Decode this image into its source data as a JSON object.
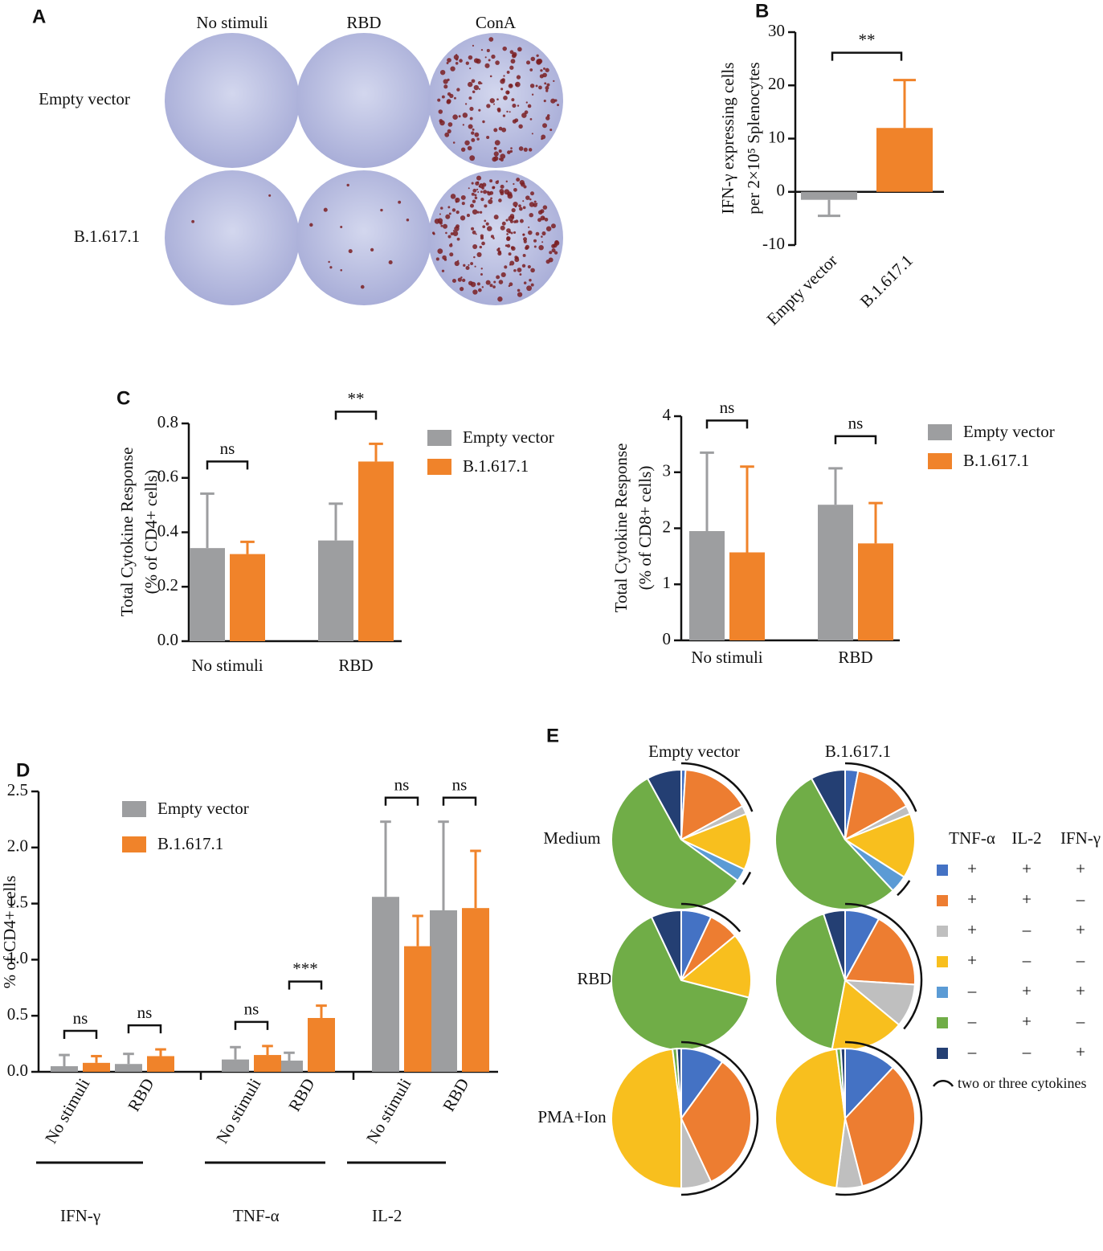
{
  "panel_a": {
    "panel": "A",
    "columns": [
      "No stimuli",
      "RBD",
      "ConA"
    ],
    "rows": [
      "Empty vector",
      "B.1.617.1"
    ]
  },
  "chart_data": [
    {
      "type": "bar",
      "panel": "B",
      "ylabel": [
        "IFN-γ expressing cells",
        "per 2×10⁵ Splenocytes"
      ],
      "categories": [
        "Empty vector",
        "B.1.617.1"
      ],
      "values": [
        -1.5,
        12
      ],
      "errors": [
        3,
        9
      ],
      "colors": [
        "#9d9ea0",
        "#f0832a"
      ],
      "ylim": [
        -10,
        30
      ],
      "yticks": [
        -10,
        0,
        10,
        20,
        30
      ],
      "significance": [
        "**"
      ]
    },
    {
      "type": "grouped_bar",
      "panel": "C",
      "ylabel": [
        "Total Cytokine Response",
        "(% of CD4+ cells)"
      ],
      "categories": [
        "No stimuli",
        "RBD"
      ],
      "series": [
        {
          "name": "Empty vector",
          "color": "#9d9ea0",
          "values": [
            0.342,
            0.37
          ],
          "errors": [
            0.2,
            0.135
          ]
        },
        {
          "name": "B.1.617.1",
          "color": "#f0832a",
          "values": [
            0.32,
            0.66
          ],
          "errors": [
            0.045,
            0.065
          ]
        }
      ],
      "ylim": [
        0,
        0.8
      ],
      "yticks": [
        {
          "value": 0,
          "label": "0.0"
        },
        0.2,
        0.4,
        0.6,
        0.8
      ],
      "significance": [
        "ns",
        "**"
      ]
    },
    {
      "type": "grouped_bar",
      "ylabel": [
        "Total Cytokine Response",
        "(% of CD8+ cells)"
      ],
      "categories": [
        "No stimuli",
        "RBD"
      ],
      "series": [
        {
          "name": "Empty vector",
          "color": "#9d9ea0",
          "values": [
            1.95,
            2.42
          ],
          "errors": [
            1.4,
            0.65
          ]
        },
        {
          "name": "B.1.617.1",
          "color": "#f0832a",
          "values": [
            1.57,
            1.73
          ],
          "errors": [
            1.53,
            0.72
          ]
        }
      ],
      "ylim": [
        0,
        4
      ],
      "yticks": [
        0,
        1,
        2,
        3,
        4
      ],
      "significance": [
        "ns",
        "ns"
      ]
    },
    {
      "type": "grouped_bar",
      "panel": "D",
      "ylabel": [
        "% of CD4+ cells"
      ],
      "categories": [
        "No stimuli",
        "RBD",
        "No stimuli",
        "RBD",
        "No stimuli",
        "RBD"
      ],
      "groups": [
        "IFN-γ",
        "TNF-α",
        "IL-2"
      ],
      "series": [
        {
          "name": "Empty vector",
          "color": "#9d9ea0",
          "values": [
            0.05,
            0.07,
            0.11,
            0.1,
            1.56,
            1.44
          ],
          "errors": [
            0.1,
            0.09,
            0.11,
            0.07,
            0.67,
            0.79
          ]
        },
        {
          "name": "B.1.617.1",
          "color": "#f0832a",
          "values": [
            0.08,
            0.14,
            0.15,
            0.48,
            1.12,
            1.46
          ],
          "errors": [
            0.06,
            0.06,
            0.08,
            0.11,
            0.27,
            0.51
          ]
        }
      ],
      "ylim": [
        0,
        2.5
      ],
      "yticks": [
        {
          "value": 0,
          "label": "0.0"
        },
        0.5,
        {
          "value": 1,
          "label": "1.0"
        },
        1.5,
        {
          "value": 2,
          "label": "2.0"
        },
        2.5
      ],
      "significance": [
        "ns",
        "ns",
        "ns",
        "***",
        "ns",
        "ns"
      ]
    },
    {
      "type": "pie_grid",
      "panel": "E",
      "columns": [
        "Empty vector",
        "B.1.617.1"
      ],
      "rows": [
        "Medium",
        "RBD",
        "PMA+Ion"
      ],
      "slice_colors": [
        "#4472c4",
        "#ed7d31",
        "#bfbfbf",
        "#f8bf1e",
        "#5b9bd5",
        "#70ad47",
        "#243f73"
      ],
      "pies": [
        [
          [
            1,
            16,
            2,
            13,
            3,
            57,
            8
          ],
          [
            3,
            14,
            2,
            15,
            4,
            54,
            8
          ]
        ],
        [
          [
            7,
            7,
            0,
            15,
            0,
            64,
            7
          ],
          [
            8,
            18,
            10,
            17,
            0,
            42,
            5
          ]
        ],
        [
          [
            10,
            33,
            7,
            48,
            0,
            1,
            1
          ],
          [
            12,
            34,
            6,
            46,
            0,
            1,
            1
          ]
        ]
      ],
      "legend": {
        "headers": [
          "TNF-α",
          "IL-2",
          "IFN-γ"
        ],
        "rows": [
          [
            "+",
            "+",
            "+"
          ],
          [
            "+",
            "+",
            "–"
          ],
          [
            "+",
            "–",
            "+"
          ],
          [
            "+",
            "–",
            "–"
          ],
          [
            "–",
            "+",
            "+"
          ],
          [
            "–",
            "+",
            "–"
          ],
          [
            "–",
            "–",
            "+"
          ]
        ],
        "arc_note": "two or three cytokines"
      }
    }
  ]
}
